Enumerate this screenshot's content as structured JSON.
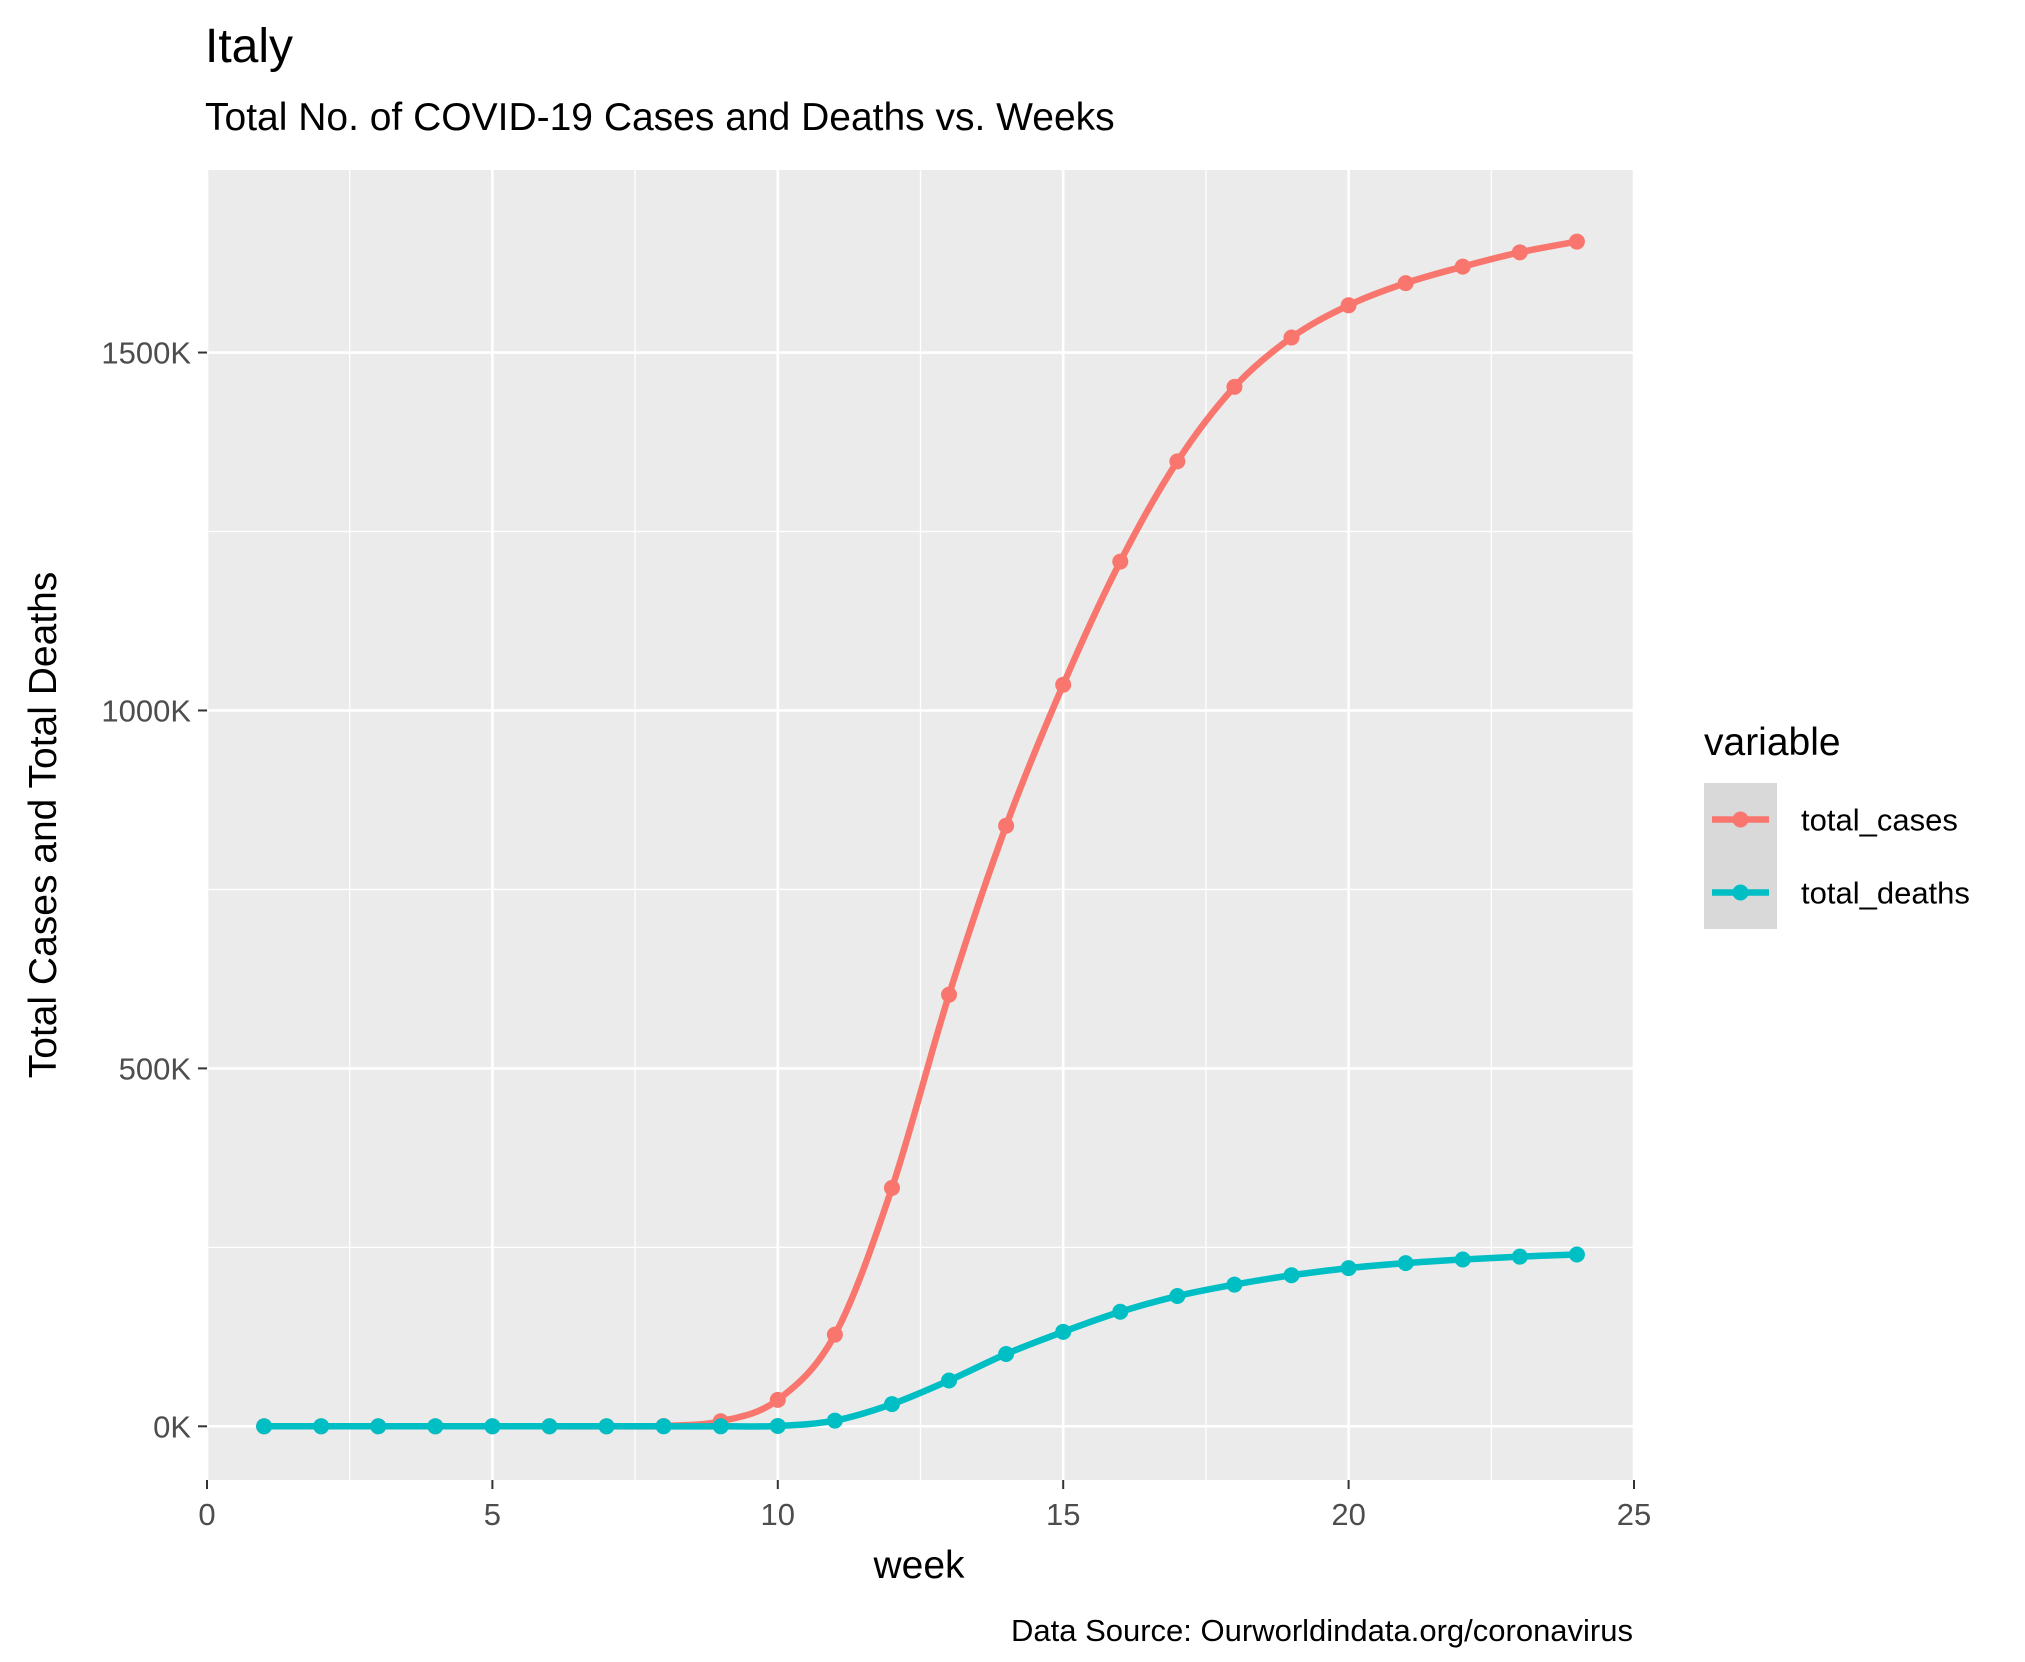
{
  "colors": {
    "panel_bg": "#EBEBEB",
    "grid": "#FFFFFF",
    "tick": "#333333",
    "legend_key_bg": "#D9D9D9"
  },
  "chart_data": {
    "type": "line",
    "title": "Italy",
    "subtitle": "Total No. of COVID-19 Cases and Deaths vs. Weeks",
    "xlabel": "week",
    "ylabel": "Total Cases and Total Deaths",
    "caption": "Data Source: Ourworldindata.org/coronavirus",
    "xlim": [
      0,
      25
    ],
    "ylim": [
      -75000,
      1755000
    ],
    "x_ticks": [
      0,
      5,
      10,
      15,
      20,
      25
    ],
    "x_tick_labels": [
      "0",
      "5",
      "10",
      "15",
      "20",
      "25"
    ],
    "y_ticks": [
      0,
      500000,
      1000000,
      1500000
    ],
    "y_tick_labels": [
      "0K",
      "500K",
      "1000K",
      "1500K"
    ],
    "grid": true,
    "legend": {
      "title": "variable",
      "position": "right"
    },
    "x": [
      1,
      2,
      3,
      4,
      5,
      6,
      7,
      8,
      9,
      10,
      11,
      12,
      13,
      14,
      15,
      16,
      17,
      18,
      19,
      20,
      21,
      22,
      23,
      24
    ],
    "series": [
      {
        "name": "total_cases",
        "color": "#F8766D",
        "values": [
          0,
          0,
          0,
          0,
          0,
          0,
          0,
          500,
          7000,
          37000,
          128000,
          333000,
          603000,
          839000,
          1036000,
          1208000,
          1348000,
          1452000,
          1521000,
          1566000,
          1597000,
          1620000,
          1640000,
          1655000
        ]
      },
      {
        "name": "total_deaths",
        "color": "#00BFC4",
        "values": [
          0,
          0,
          0,
          0,
          0,
          0,
          0,
          0,
          0,
          500,
          8000,
          31000,
          64000,
          101000,
          132000,
          160000,
          182000,
          198000,
          211000,
          221000,
          228000,
          233000,
          237000,
          240000
        ]
      }
    ]
  }
}
